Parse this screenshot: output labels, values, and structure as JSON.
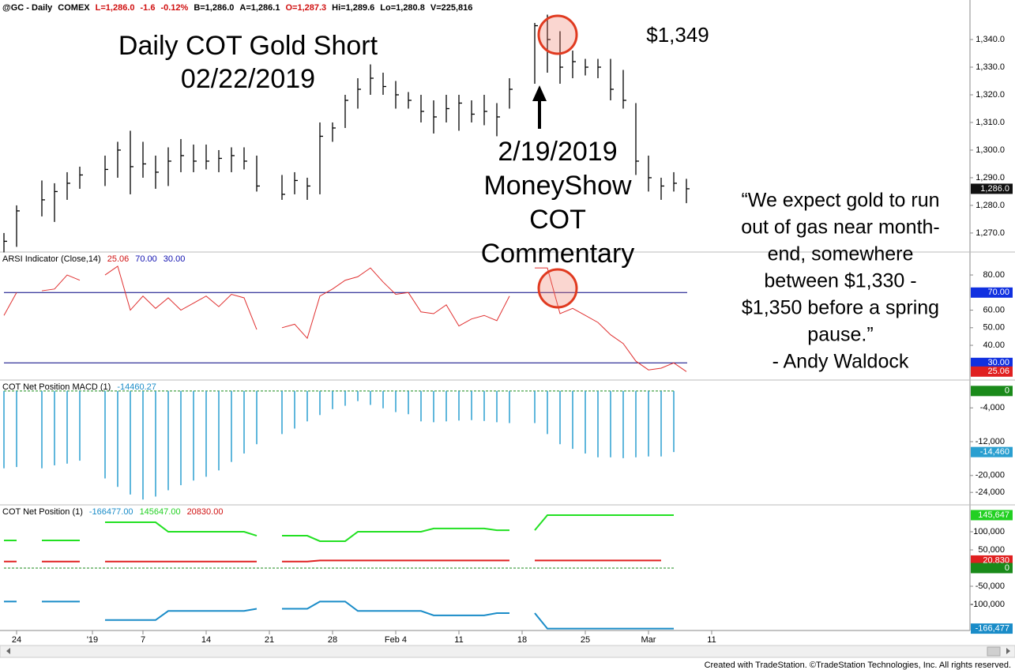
{
  "header": {
    "items": [
      {
        "text": "@GC - Daily",
        "color": "#000000"
      },
      {
        "text": "COMEX",
        "color": "#000000"
      },
      {
        "text": "L=1,286.0",
        "color": "#d01010"
      },
      {
        "text": "-1.6",
        "color": "#d01010"
      },
      {
        "text": "-0.12%",
        "color": "#d01010"
      },
      {
        "text": "B=1,286.0",
        "color": "#000000"
      },
      {
        "text": "A=1,286.1",
        "color": "#000000"
      },
      {
        "text": "O=1,287.3",
        "color": "#d01010"
      },
      {
        "text": "Hi=1,289.6",
        "color": "#000000"
      },
      {
        "text": "Lo=1,280.8",
        "color": "#000000"
      },
      {
        "text": "V=225,816",
        "color": "#000000"
      }
    ]
  },
  "annotations": {
    "title": "Daily COT Gold Short",
    "date": "02/22/2019",
    "peak": "$1,349",
    "event": [
      "2/19/2019",
      "MoneyShow",
      "COT",
      "Commentary"
    ],
    "quote": [
      "“We expect gold to run",
      "out of gas near month-",
      "end, somewhere",
      "between $1,330 -",
      "$1,350 before a spring",
      "pause.”",
      "- Andy Waldock"
    ]
  },
  "footer": "Created with TradeStation. ©TradeStation Technologies, Inc. All rights reserved.",
  "chart_data": [
    {
      "type": "ohlc",
      "color": "#000000",
      "categories": [
        null,
        "24",
        null,
        null,
        null,
        null,
        null,
        "'19",
        null,
        null,
        null,
        "7",
        null,
        null,
        null,
        null,
        "14",
        null,
        null,
        null,
        null,
        "21",
        null,
        null,
        null,
        null,
        "28",
        null,
        null,
        null,
        null,
        "Feb 4",
        null,
        null,
        null,
        null,
        "11",
        null,
        null,
        null,
        null,
        "18",
        null,
        null,
        null,
        null,
        "25",
        null,
        null,
        null,
        null,
        "Mar",
        null,
        null,
        null,
        null,
        "11"
      ],
      "high": [
        1270,
        1280,
        null,
        1289,
        1288,
        1292,
        1294,
        null,
        1298,
        1303,
        1307,
        1303,
        1298,
        1301,
        1304,
        1302,
        1302,
        1300,
        1301,
        1301,
        1298,
        null,
        1291,
        1292,
        1290,
        1310,
        1310,
        1320,
        1326,
        1331,
        1328,
        1325,
        1321,
        1320,
        1318,
        1320,
        1320,
        1318,
        1320,
        1317,
        1326,
        null,
        1346,
        1349,
        1343,
        1336,
        1333,
        1333,
        1333,
        1329,
        1317,
        1298,
        1290,
        1292,
        1289.6,
        null,
        null
      ],
      "low": [
        1263,
        1265,
        null,
        1276,
        1274,
        1282,
        1286,
        null,
        1287,
        1290,
        1284,
        1290,
        1286,
        1287,
        1292,
        1292,
        1293,
        1292,
        1292,
        1293,
        1285,
        null,
        1282,
        1284,
        1282,
        1284,
        1303,
        1308,
        1315,
        1320,
        1320,
        1315,
        1315,
        1310,
        1306,
        1310,
        1307,
        1310,
        1309,
        1305,
        1315,
        null,
        1324,
        1328,
        1324,
        1326,
        1327,
        1326,
        1318,
        1315,
        1291,
        1285,
        1282,
        1285,
        1280.8,
        null,
        null
      ],
      "close": [
        1267,
        1278,
        null,
        1282,
        1285,
        1288,
        1291,
        null,
        1293,
        1300,
        1294,
        1295,
        1292,
        1296,
        1298,
        1296,
        1296,
        1297,
        1298,
        1296,
        1287,
        null,
        1284,
        1289,
        1287,
        1305,
        1308,
        1318,
        1322,
        1326,
        1323,
        1320,
        1318,
        1314,
        1312,
        1315,
        1317,
        1313,
        1314,
        1312,
        1322,
        null,
        1345,
        1340,
        1330,
        1332,
        1330,
        1330,
        1322,
        1318,
        1296,
        1290,
        1287,
        1288,
        1286.0,
        null,
        null
      ],
      "ylim": [
        1263.4,
        1354.3
      ],
      "yticks": [
        {
          "value": 1270,
          "label": "1,270.0"
        },
        {
          "value": 1280,
          "label": "1,280.0"
        },
        {
          "value": 1290,
          "label": "1,290.0"
        },
        {
          "value": 1300,
          "label": "1,300.0"
        },
        {
          "value": 1310,
          "label": "1,310.0"
        },
        {
          "value": 1320,
          "label": "1,320.0"
        },
        {
          "value": 1330,
          "label": "1,330.0"
        },
        {
          "value": 1340,
          "label": "1,340.0"
        }
      ],
      "last_labels": [
        {
          "value": 1286.0,
          "label": "1,286.0",
          "color": "#111111"
        }
      ]
    },
    {
      "type": "line",
      "title": "ARSI Indicator (Close,14)",
      "legend_values": [
        {
          "value": 25.06,
          "label": "25.06",
          "color": "#d01010"
        },
        {
          "value": 70,
          "label": "70.00",
          "color": "#1010b0"
        },
        {
          "value": 30,
          "label": "30.00",
          "color": "#1010b0"
        }
      ],
      "series": [
        {
          "color": "#e03030",
          "values": [
            57,
            70,
            null,
            71,
            72,
            80,
            77,
            null,
            80,
            85,
            60,
            68,
            61,
            67,
            60,
            64,
            68,
            62,
            69,
            67,
            49,
            null,
            50,
            52,
            44,
            68,
            72,
            77,
            79,
            84,
            76,
            69,
            70,
            59,
            58,
            63,
            51,
            55,
            57,
            54,
            68,
            null,
            84,
            84,
            58,
            61,
            57,
            53,
            46,
            41,
            31,
            26,
            27,
            30,
            25.06,
            null,
            null
          ]
        }
      ],
      "hlines": [
        {
          "value": 70,
          "color": "#000080"
        },
        {
          "value": 30,
          "color": "#000080"
        }
      ],
      "ylim": [
        20.7,
        92.6
      ],
      "yticks": [
        {
          "value": 40,
          "label": "40.00"
        },
        {
          "value": 50,
          "label": "50.00"
        },
        {
          "value": 60,
          "label": "60.00"
        },
        {
          "value": 80,
          "label": "80.00"
        }
      ],
      "last_labels": [
        {
          "value": 70,
          "label": "70.00",
          "color": "#1030e0"
        },
        {
          "value": 30,
          "label": "30.00",
          "color": "#1030e0"
        },
        {
          "value": 25.06,
          "label": "25.06",
          "color": "#e02020"
        }
      ]
    },
    {
      "type": "bar",
      "title": "COT Net Position MACD (1)",
      "legend_values": [
        {
          "value": -14460.27,
          "label": "-14460.27",
          "color": "#1a8cc8"
        }
      ],
      "series": [
        {
          "color": "#2a9fd0",
          "values": [
            -18300,
            -18000,
            null,
            -18300,
            -17600,
            -17200,
            -16500,
            null,
            -20700,
            -22700,
            -24500,
            -25700,
            -25000,
            -23500,
            -22300,
            -21200,
            -20300,
            -18800,
            -16800,
            -14800,
            -12600,
            null,
            -10200,
            -8900,
            -7200,
            -5700,
            -4300,
            -3500,
            -2400,
            -3300,
            -4100,
            -5000,
            -5500,
            -7200,
            -7400,
            -7200,
            -7000,
            -6900,
            -7100,
            -7400,
            -7600,
            null,
            -7600,
            -10200,
            -12600,
            -13700,
            -14800,
            -15700,
            -15700,
            -15900,
            -15700,
            -15500,
            -15500,
            -14460.27,
            null,
            null,
            null
          ]
        }
      ],
      "zero_line": "#1a8a1a",
      "ylim": [
        -26770,
        2400
      ],
      "yticks": [
        {
          "value": -4000,
          "label": "-4,000"
        },
        {
          "value": -12000,
          "label": "-12,000"
        },
        {
          "value": -20000,
          "label": "-20,000"
        },
        {
          "value": -24000,
          "label": "-24,000"
        }
      ],
      "last_labels": [
        {
          "value": 0,
          "label": "0",
          "color": "#1a8a1a"
        },
        {
          "value": -14460.27,
          "label": "-14,460",
          "color": "#2a9fd0"
        }
      ]
    },
    {
      "type": "line",
      "title": "COT Net Position (1)",
      "legend_values": [
        {
          "value": -166477,
          "label": "-166477.00",
          "color": "#1a8cc8"
        },
        {
          "value": 145647,
          "label": "145647.00",
          "color": "#22d022"
        },
        {
          "value": 20830,
          "label": "20830.00",
          "color": "#d01010"
        }
      ],
      "series": [
        {
          "color": "#1a8cc8",
          "values": [
            -92000,
            -92000,
            null,
            -92000,
            -92000,
            -92000,
            -92000,
            null,
            -143000,
            -143000,
            -143000,
            -143000,
            -143000,
            -118000,
            -118000,
            -118000,
            -118000,
            -118000,
            -118000,
            -118000,
            -112000,
            null,
            -112000,
            -112000,
            -112000,
            -92000,
            -92000,
            -92000,
            -118000,
            -118000,
            -118000,
            -118000,
            -118000,
            -118000,
            -130000,
            -130000,
            -130000,
            -130000,
            -130000,
            -124000,
            -124000,
            null,
            -124000,
            -166477,
            -166477,
            -166477,
            -166477,
            -166477,
            -166477,
            -166477,
            -166477,
            -166477,
            -166477,
            -166477,
            null,
            null,
            null
          ]
        },
        {
          "color": "#22e022",
          "values": [
            76000,
            76000,
            null,
            76000,
            76000,
            76000,
            76000,
            null,
            126000,
            126000,
            126000,
            126000,
            126000,
            100000,
            100000,
            100000,
            100000,
            100000,
            100000,
            100000,
            89000,
            null,
            89000,
            89000,
            89000,
            74000,
            74000,
            74000,
            100000,
            100000,
            100000,
            100000,
            100000,
            100000,
            109000,
            109000,
            109000,
            109000,
            109000,
            104000,
            104000,
            null,
            104000,
            145647,
            145647,
            145647,
            145647,
            145647,
            145647,
            145647,
            145647,
            145647,
            145647,
            145647,
            null,
            null,
            null
          ]
        },
        {
          "color": "#e02020",
          "values": [
            18000,
            18000,
            null,
            18000,
            18000,
            18000,
            18000,
            null,
            18000,
            18000,
            18000,
            18000,
            18000,
            18000,
            18000,
            18000,
            18000,
            18000,
            18000,
            18000,
            18000,
            null,
            18000,
            18000,
            18000,
            20830,
            20830,
            20830,
            20830,
            20830,
            20830,
            20830,
            20830,
            20830,
            20830,
            20830,
            20830,
            20830,
            20830,
            20830,
            20830,
            null,
            20830,
            20830,
            20830,
            20830,
            20830,
            20830,
            20830,
            20830,
            20830,
            20830,
            20830,
            null,
            null,
            null
          ]
        }
      ],
      "zero_line": "#1a8a1a",
      "ylim": [
        -171700,
        171700
      ],
      "yticks": [
        {
          "value": 100000,
          "label": "100,000"
        },
        {
          "value": 50000,
          "label": "50,000"
        },
        {
          "value": -50000,
          "label": "-50,000"
        },
        {
          "value": -100000,
          "label": "-100,000"
        }
      ],
      "last_labels": [
        {
          "value": 145647,
          "label": "145,647",
          "color": "#22d022"
        },
        {
          "value": 20830,
          "label": "20,830",
          "color": "#e02020"
        },
        {
          "value": 0,
          "label": "0",
          "color": "#1a8a1a"
        },
        {
          "value": -166477,
          "label": "-166,477",
          "color": "#1a8cc8"
        }
      ]
    }
  ]
}
